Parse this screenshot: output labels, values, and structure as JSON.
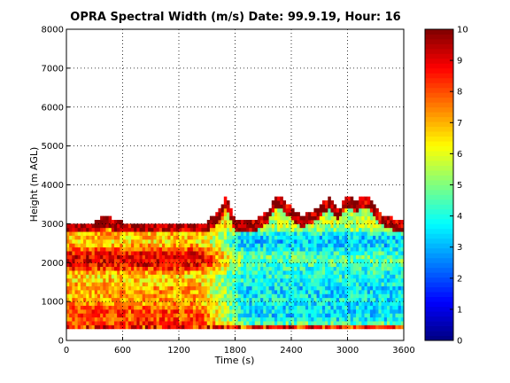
{
  "chart_data": {
    "type": "heatmap",
    "title": "OPRA Spectral Width (m/s)  Date: 99.9.19, Hour: 16",
    "xlabel": "Time (s)",
    "ylabel": "Height (m AGL)",
    "xlim": [
      0,
      3600
    ],
    "ylim": [
      0,
      8000
    ],
    "xticks": [
      0,
      600,
      1200,
      1800,
      2400,
      3000,
      3600
    ],
    "yticks": [
      0,
      1000,
      2000,
      3000,
      4000,
      5000,
      6000,
      7000,
      8000
    ],
    "grid": true,
    "colorbar": {
      "range": [
        0,
        10
      ],
      "ticks": [
        0,
        1,
        2,
        3,
        4,
        5,
        6,
        7,
        8,
        9,
        10
      ],
      "colormap": "jet"
    },
    "data_top_height_profile": {
      "time": [
        0,
        300,
        400,
        600,
        900,
        1200,
        1500,
        1560,
        1620,
        1700,
        1760,
        1800,
        2000,
        2150,
        2250,
        2350,
        2500,
        2650,
        2800,
        2900,
        3000,
        3100,
        3200,
        3300,
        3400,
        3600
      ],
      "height": [
        3000,
        3000,
        3150,
        3000,
        3000,
        3000,
        3000,
        3150,
        3300,
        3650,
        3300,
        3000,
        3050,
        3300,
        3700,
        3500,
        3150,
        3300,
        3650,
        3300,
        3700,
        3550,
        3700,
        3350,
        3150,
        3000
      ]
    },
    "profile_mean_by_height": {
      "height": [
        300,
        500,
        700,
        900,
        1100,
        1300,
        1500,
        1700,
        1900,
        2100,
        2300,
        2500,
        2700,
        2900
      ],
      "early_period": [
        9.0,
        8.0,
        8.2,
        7.5,
        7.0,
        7.2,
        6.8,
        6.5,
        8.8,
        9.0,
        8.5,
        6.5,
        6.8,
        7.5
      ],
      "late_period": [
        6.5,
        3.8,
        3.4,
        3.6,
        3.7,
        3.4,
        3.8,
        4.0,
        4.2,
        4.8,
        4.0,
        3.2,
        3.5,
        5.5
      ]
    }
  }
}
